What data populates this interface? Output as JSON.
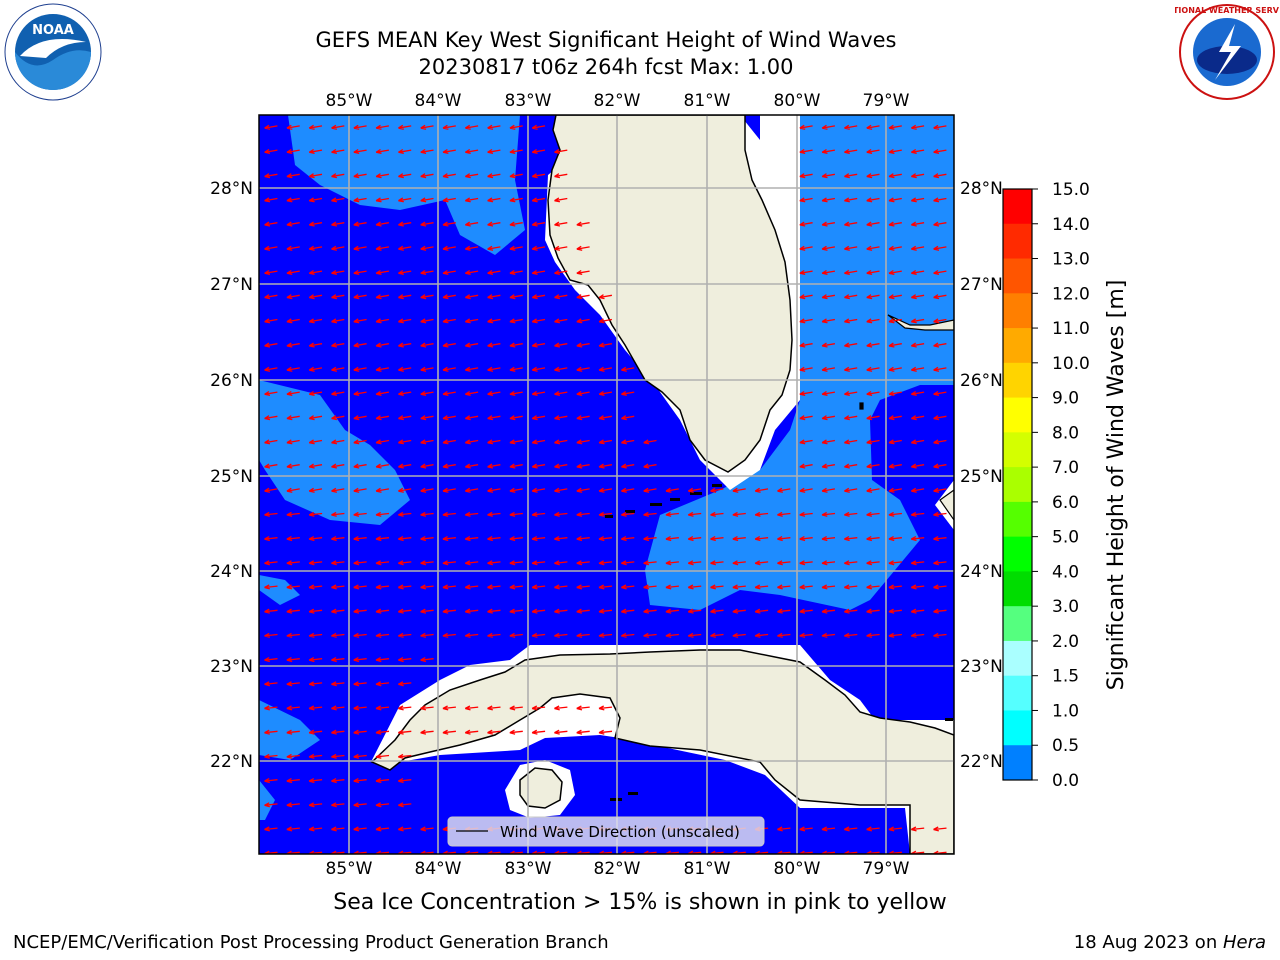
{
  "title_line1": "GEFS MEAN Key West Significant Height of Wind Waves",
  "title_line2": "20230817 t06z 264h fcst   Max: 1.00",
  "logos": {
    "left": "NOAA",
    "right": "NATIONAL WEATHER SERVICE"
  },
  "longitude_labels": [
    "85°W",
    "84°W",
    "83°W",
    "82°W",
    "81°W",
    "80°W",
    "79°W"
  ],
  "latitude_labels": [
    "28°N",
    "27°N",
    "26°N",
    "25°N",
    "24°N",
    "23°N",
    "22°N"
  ],
  "legend_label": "Wind Wave Direction (unscaled)",
  "colorbar": {
    "label": "Significant Height of Wind Waves [m]",
    "ticks": [
      "15.0",
      "14.0",
      "13.0",
      "12.0",
      "11.0",
      "10.0",
      "9.0",
      "8.0",
      "7.0",
      "6.0",
      "5.0",
      "4.0",
      "3.0",
      "2.0",
      "1.5",
      "1.0",
      "0.5",
      "0.0"
    ],
    "colors": [
      "#ff0000",
      "#ff2a00",
      "#ff5500",
      "#ff7f00",
      "#ffaa00",
      "#ffd400",
      "#ffff00",
      "#d4ff00",
      "#aaff00",
      "#55ff00",
      "#00ff00",
      "#00dd00",
      "#55ff7f",
      "#aaffff",
      "#55ffff",
      "#00ffff",
      "#0080ff",
      "#0000ff"
    ]
  },
  "colors": {
    "sea_low": "#0000ff",
    "sea_mid": "#1e8cff",
    "land": "#efeedd",
    "arrow": "#ff0000",
    "grid": "#b0b0b0"
  },
  "ice_note": "Sea Ice Concentration > 15% is shown in pink to yellow",
  "footer_left": "NCEP/EMC/Verification Post Processing Product Generation Branch",
  "footer_right_date": "18 Aug 2023 on ",
  "footer_right_host": "Hera"
}
